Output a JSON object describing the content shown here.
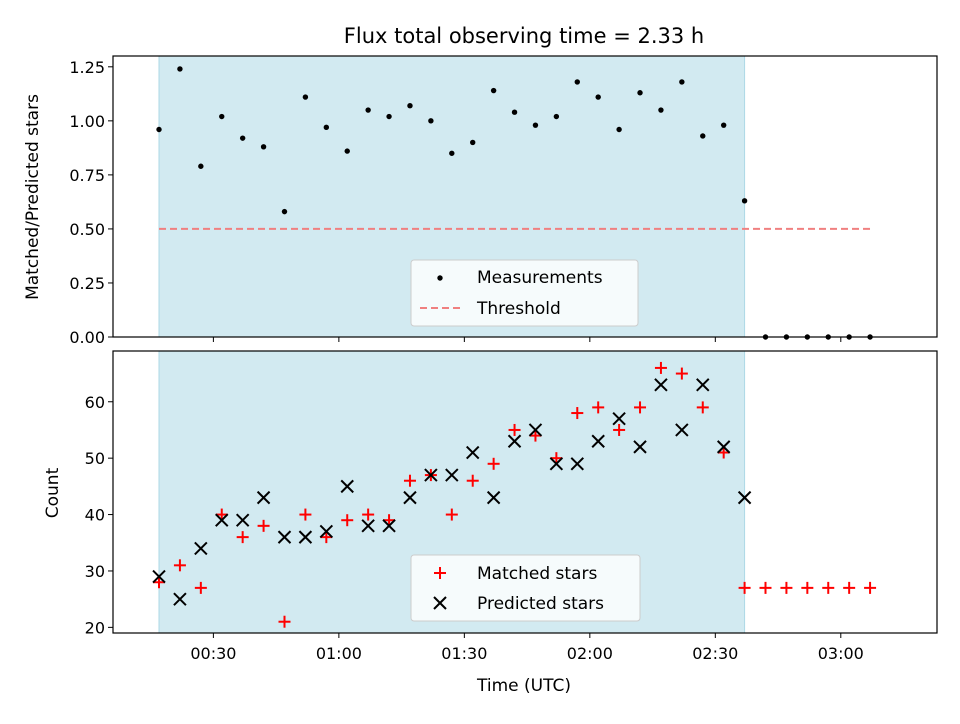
{
  "title": "Flux total observing time = 2.33 h",
  "chart_data": [
    {
      "type": "scatter",
      "ylabel": "Matched/Predicted stars",
      "ylim": [
        0,
        1.3
      ],
      "yticks": [
        "0.00",
        "0.25",
        "0.50",
        "0.75",
        "1.00",
        "1.25"
      ],
      "ytick_values": [
        0,
        0.25,
        0.5,
        0.75,
        1.0,
        1.25
      ],
      "shaded_span": [
        "00:17",
        "02:37"
      ],
      "shade_color": "#add8e6",
      "threshold": {
        "name": "Threshold",
        "value": 0.5,
        "x_range": [
          "00:17",
          "03:07"
        ],
        "color": "#f08080"
      },
      "series": [
        {
          "name": "Measurements",
          "color": "#000000",
          "x": [
            "00:17",
            "00:22",
            "00:27",
            "00:32",
            "00:37",
            "00:42",
            "00:47",
            "00:52",
            "00:57",
            "01:02",
            "01:07",
            "01:12",
            "01:17",
            "01:22",
            "01:27",
            "01:32",
            "01:37",
            "01:42",
            "01:47",
            "01:52",
            "01:57",
            "02:02",
            "02:07",
            "02:12",
            "02:17",
            "02:22",
            "02:27",
            "02:32",
            "02:37",
            "02:42",
            "02:47",
            "02:52",
            "02:57",
            "03:02",
            "03:07"
          ],
          "y": [
            0.96,
            1.24,
            0.79,
            1.02,
            0.92,
            0.88,
            0.58,
            1.11,
            0.97,
            0.86,
            1.05,
            1.02,
            1.07,
            1.0,
            0.85,
            0.9,
            1.14,
            1.04,
            0.98,
            1.02,
            1.18,
            1.11,
            0.96,
            1.13,
            1.05,
            1.18,
            0.93,
            0.98,
            0.63,
            0,
            0,
            0,
            0,
            0,
            0
          ]
        }
      ],
      "legend": [
        "Measurements",
        "Threshold"
      ],
      "legend_loc": "lower center"
    },
    {
      "type": "scatter",
      "xlabel": "Time (UTC)",
      "ylabel": "Count",
      "ylim": [
        19,
        69
      ],
      "yticks": [
        "20",
        "30",
        "40",
        "50",
        "60"
      ],
      "ytick_values": [
        20,
        30,
        40,
        50,
        60
      ],
      "xticks": [
        "00:30",
        "01:00",
        "01:30",
        "02:00",
        "02:30",
        "03:00"
      ],
      "shaded_span": [
        "00:17",
        "02:37"
      ],
      "shade_color": "#add8e6",
      "series": [
        {
          "name": "Matched stars",
          "color": "#ff0000",
          "marker": "+",
          "x": [
            "00:17",
            "00:22",
            "00:27",
            "00:32",
            "00:37",
            "00:42",
            "00:47",
            "00:52",
            "00:57",
            "01:02",
            "01:07",
            "01:12",
            "01:17",
            "01:22",
            "01:27",
            "01:32",
            "01:37",
            "01:42",
            "01:47",
            "01:52",
            "01:57",
            "02:02",
            "02:07",
            "02:12",
            "02:17",
            "02:22",
            "02:27",
            "02:32",
            "02:37",
            "02:42",
            "02:47",
            "02:52",
            "02:57",
            "03:02",
            "03:07"
          ],
          "y": [
            28,
            31,
            27,
            40,
            36,
            38,
            21,
            40,
            36,
            39,
            40,
            39,
            46,
            47,
            40,
            46,
            49,
            55,
            54,
            50,
            58,
            59,
            55,
            59,
            66,
            65,
            59,
            51,
            27,
            27,
            27,
            27,
            27,
            27,
            27
          ]
        },
        {
          "name": "Predicted stars",
          "color": "#000000",
          "marker": "x",
          "x": [
            "00:17",
            "00:22",
            "00:27",
            "00:32",
            "00:37",
            "00:42",
            "00:47",
            "00:52",
            "00:57",
            "01:02",
            "01:07",
            "01:12",
            "01:17",
            "01:22",
            "01:27",
            "01:32",
            "01:37",
            "01:42",
            "01:47",
            "01:52",
            "01:57",
            "02:02",
            "02:07",
            "02:12",
            "02:17",
            "02:22",
            "02:27",
            "02:32",
            "02:37"
          ],
          "y": [
            29,
            25,
            34,
            39,
            39,
            43,
            36,
            36,
            37,
            45,
            38,
            38,
            43,
            47,
            47,
            51,
            43,
            53,
            55,
            49,
            49,
            53,
            57,
            52,
            63,
            55,
            63,
            52,
            43
          ]
        }
      ],
      "legend": [
        "Matched stars",
        "Predicted stars"
      ],
      "legend_loc": "lower center"
    }
  ]
}
